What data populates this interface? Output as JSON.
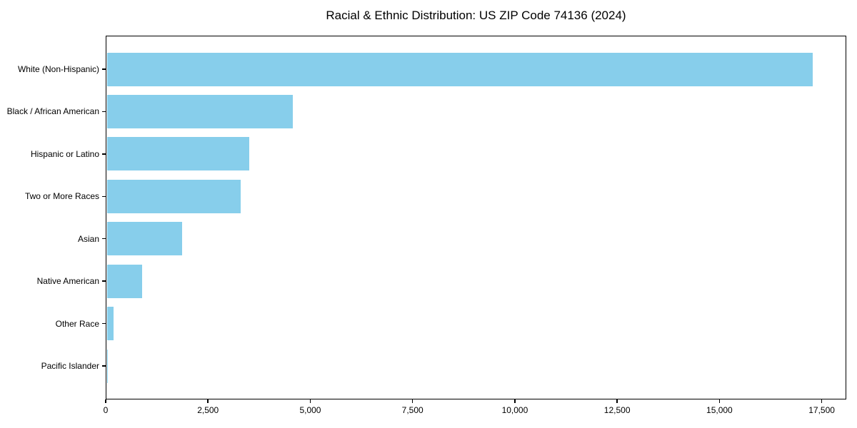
{
  "figure": {
    "background": "#ffffff"
  },
  "chart_data": {
    "type": "bar",
    "orientation": "horizontal",
    "title": "Racial & Ethnic Distribution: US ZIP Code 74136 (2024)",
    "categories": [
      "White (Non-Hispanic)",
      "Black / African American",
      "Hispanic or Latino",
      "Two or More Races",
      "Asian",
      "Native American",
      "Other Race",
      "Pacific Islander"
    ],
    "values": [
      17260,
      4540,
      3490,
      3270,
      1850,
      870,
      165,
      25
    ],
    "xlabel": "",
    "ylabel": "",
    "xlim": [
      0,
      18100
    ],
    "xticks": [
      0,
      2500,
      5000,
      7500,
      10000,
      12500,
      15000,
      17500
    ],
    "xtick_labels": [
      "0",
      "2,500",
      "5,000",
      "7,500",
      "10,000",
      "12,500",
      "15,000",
      "17,500"
    ],
    "bar_color": "#87CEEB",
    "axis_color": "#000000",
    "text_color": "#000000",
    "grid": false,
    "legend": "none"
  }
}
